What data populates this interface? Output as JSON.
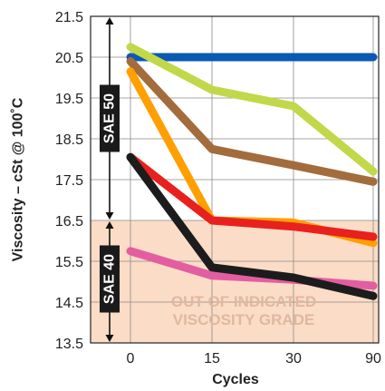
{
  "chart_data": {
    "type": "line",
    "xlabel": "Cycles",
    "ylabel": "Viscosity – cSt @ 100˚C",
    "categories": [
      "0",
      "15",
      "30",
      "90"
    ],
    "yticks": [
      "13.5",
      "14.5",
      "15.5",
      "16.5",
      "17.5",
      "18.5",
      "19.5",
      "20.5",
      "21.5"
    ],
    "ylim": [
      13.5,
      21.5
    ],
    "grid": true,
    "series": [
      {
        "color": "#0a5ab4",
        "values": [
          20.5,
          20.5,
          20.5,
          20.5
        ]
      },
      {
        "color": "#c2d84a",
        "values": [
          20.75,
          19.7,
          19.3,
          17.7
        ]
      },
      {
        "color": "#a36c3c",
        "values": [
          20.4,
          18.25,
          17.85,
          17.45
        ]
      },
      {
        "color": "#ff9f00",
        "values": [
          20.15,
          16.5,
          16.45,
          15.95
        ]
      },
      {
        "color": "#e8201e",
        "values": [
          18.05,
          16.5,
          16.35,
          16.1
        ]
      },
      {
        "color": "#e35ea0",
        "values": [
          15.75,
          15.15,
          15.05,
          14.9
        ]
      },
      {
        "color": "#1c1c1c",
        "values": [
          18.05,
          15.35,
          15.1,
          14.65
        ]
      }
    ],
    "bands": [
      {
        "label": "SAE 50",
        "from": 16.5,
        "to": 21.5
      },
      {
        "label": "SAE 40",
        "from": 13.5,
        "to": 16.5
      }
    ],
    "shaded_region": {
      "from": 13.5,
      "to": 16.5,
      "color": "#fbdcc6",
      "label_lines": [
        "OUT OF INDICATED",
        "VISCOSITY GRADE"
      ]
    }
  }
}
